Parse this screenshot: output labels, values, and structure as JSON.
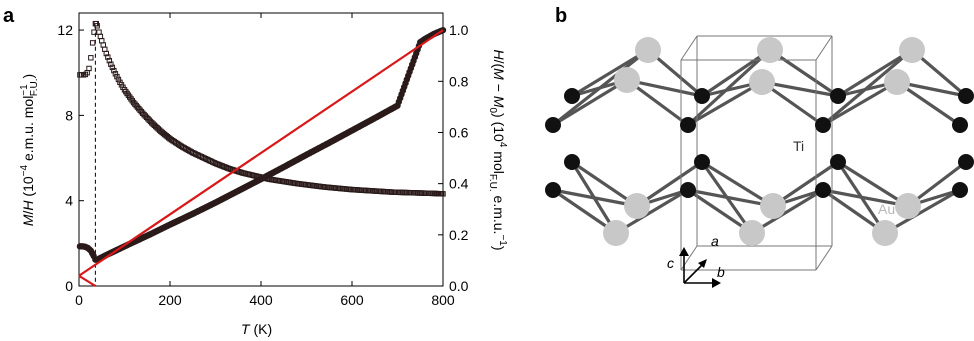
{
  "panel_a_label": "a",
  "panel_b_label": "b",
  "chart_data": {
    "type": "scatter",
    "xlabel": {
      "var": "T",
      "unit": " (K)"
    },
    "ylabel_left": {
      "var": "M/H",
      "rest": " (10",
      "exp": "−4",
      "rest2": " e.m.u. mol",
      "sub": "F.U.",
      "sup2": "−1",
      "close": ")"
    },
    "ylabel_right": {
      "text": "H/(M − M0) (10^4 mol F.U. e.m.u.^−1)"
    },
    "xlim": [
      0,
      800
    ],
    "ylim_left": [
      0,
      12.8
    ],
    "ylim_right": [
      0,
      1.067
    ],
    "x_ticks": [
      "0",
      "200",
      "400",
      "600",
      "800"
    ],
    "y_ticks_left": [
      "0",
      "4",
      "8",
      "12"
    ],
    "y_ticks_right": [
      "0.0",
      "0.2",
      "0.4",
      "0.6",
      "0.8",
      "1.0"
    ],
    "annotation": {
      "type": "dashed_vertical_line",
      "x": 36
    },
    "series": [
      {
        "axis": "left",
        "color": "#2a1a1a",
        "points": [
          [
            2,
            9.9
          ],
          [
            6,
            9.9
          ],
          [
            10,
            9.9
          ],
          [
            14,
            9.92
          ],
          [
            18,
            10.0
          ],
          [
            22,
            10.2
          ],
          [
            26,
            10.7
          ],
          [
            30,
            11.4
          ],
          [
            33,
            11.9
          ],
          [
            36,
            12.3
          ],
          [
            38,
            12.3
          ],
          [
            40,
            12.2
          ],
          [
            44,
            11.9
          ],
          [
            50,
            11.5
          ],
          [
            60,
            10.9
          ],
          [
            70,
            10.4
          ],
          [
            80,
            9.95
          ],
          [
            90,
            9.55
          ],
          [
            100,
            9.2
          ],
          [
            120,
            8.6
          ],
          [
            140,
            8.1
          ],
          [
            160,
            7.65
          ],
          [
            180,
            7.25
          ],
          [
            200,
            6.9
          ],
          [
            225,
            6.55
          ],
          [
            250,
            6.25
          ],
          [
            275,
            6.0
          ],
          [
            300,
            5.75
          ],
          [
            330,
            5.5
          ],
          [
            360,
            5.3
          ],
          [
            390,
            5.15
          ],
          [
            420,
            5.0
          ],
          [
            450,
            4.9
          ],
          [
            480,
            4.8
          ],
          [
            510,
            4.72
          ],
          [
            540,
            4.64
          ],
          [
            570,
            4.58
          ],
          [
            600,
            4.52
          ],
          [
            630,
            4.48
          ],
          [
            660,
            4.44
          ],
          [
            690,
            4.4
          ],
          [
            720,
            4.38
          ],
          [
            750,
            4.36
          ],
          [
            780,
            4.34
          ],
          [
            800,
            4.32
          ]
        ]
      },
      {
        "axis": "right",
        "color": "#2a1a1a",
        "points": [
          [
            2,
            0.155
          ],
          [
            8,
            0.155
          ],
          [
            14,
            0.153
          ],
          [
            20,
            0.148
          ],
          [
            26,
            0.138
          ],
          [
            32,
            0.118
          ],
          [
            36,
            0.103
          ],
          [
            40,
            0.103
          ],
          [
            50,
            0.112
          ],
          [
            60,
            0.121
          ],
          [
            80,
            0.138
          ],
          [
            100,
            0.155
          ],
          [
            130,
            0.18
          ],
          [
            160,
            0.205
          ],
          [
            200,
            0.24
          ],
          [
            250,
            0.282
          ],
          [
            300,
            0.326
          ],
          [
            350,
            0.372
          ],
          [
            400,
            0.418
          ],
          [
            450,
            0.465
          ],
          [
            500,
            0.513
          ],
          [
            550,
            0.56
          ],
          [
            600,
            0.608
          ],
          [
            650,
            0.656
          ],
          [
            700,
            0.705
          ],
          [
            750,
            0.953
          ],
          [
            760,
            0.965
          ],
          [
            780,
            0.985
          ],
          [
            800,
            1.0
          ]
        ]
      }
    ],
    "fit_line": {
      "axis": "right",
      "color": "#d9181a",
      "x": [
        0,
        800
      ],
      "y": [
        0.04,
        1.0
      ]
    },
    "fit_line_low": {
      "axis": "right",
      "color": "#d9181a",
      "x": [
        0,
        36
      ],
      "y": [
        0.04,
        0.0
      ]
    }
  },
  "structure": {
    "labels": {
      "au": "Au",
      "ti": "Ti",
      "a": "a",
      "b": "b",
      "c": "c"
    },
    "colors": {
      "au": "#c8c8c8",
      "ti": "#111111",
      "bond": "#555555",
      "cell": "#777777",
      "au_label": "#b8b8b8",
      "ti_label": "#333333"
    }
  }
}
